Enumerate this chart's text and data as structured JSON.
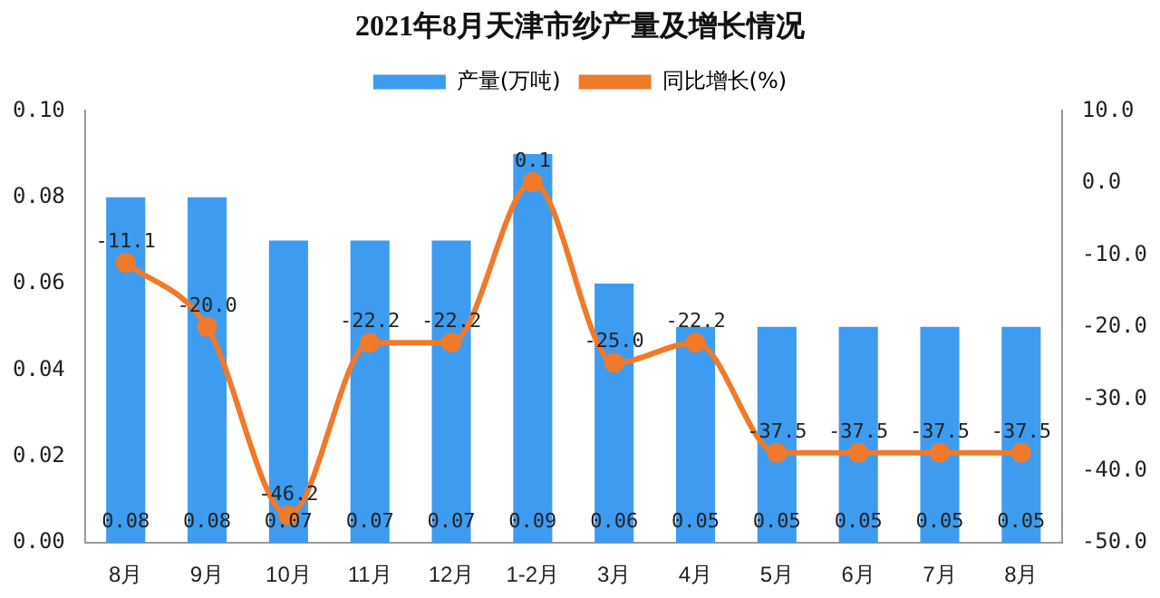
{
  "chart_data": {
    "type": "bar",
    "title": "2021年8月天津市纱产量及增长情况",
    "categories": [
      "8月",
      "9月",
      "10月",
      "11月",
      "12月",
      "1-2月",
      "3月",
      "4月",
      "5月",
      "6月",
      "7月",
      "8月"
    ],
    "series": [
      {
        "name": "产量(万吨)",
        "color": "#3d9cf0",
        "values": [
          0.08,
          0.08,
          0.07,
          0.07,
          0.07,
          0.09,
          0.06,
          0.05,
          0.05,
          0.05,
          0.05,
          0.05
        ],
        "value_labels": [
          "0.08",
          "0.08",
          "0.07",
          "0.07",
          "0.07",
          "0.09",
          "0.06",
          "0.05",
          "0.05",
          "0.05",
          "0.05",
          "0.05"
        ]
      },
      {
        "name": "同比增长(%)",
        "type": "line",
        "axis": "y2",
        "color": "#f07a2a",
        "values": [
          -11.1,
          -20.0,
          -46.2,
          -22.2,
          -22.2,
          0.1,
          -25.0,
          -22.2,
          -37.5,
          -37.5,
          -37.5,
          -37.5
        ],
        "value_labels": [
          "-11.1",
          "-20.0",
          "-46.2",
          "-22.2",
          "-22.2",
          "0.1",
          "-25.0",
          "-22.2",
          "-37.5",
          "-37.5",
          "-37.5",
          "-37.5"
        ]
      }
    ],
    "ylim": [
      0,
      0.1
    ],
    "yticks": [
      {
        "value": 0,
        "label": "0.00"
      },
      {
        "value": 0.02,
        "label": "0.02"
      },
      {
        "value": 0.04,
        "label": "0.04"
      },
      {
        "value": 0.06,
        "label": "0.06"
      },
      {
        "value": 0.08,
        "label": "0.08"
      },
      {
        "value": 0.1,
        "label": "0.10"
      }
    ],
    "y2lim": [
      -50,
      10
    ],
    "y2ticks": [
      {
        "value": -50,
        "label": "-50.0"
      },
      {
        "value": -40,
        "label": "-40.0"
      },
      {
        "value": -30,
        "label": "-30.0"
      },
      {
        "value": -20,
        "label": "-20.0"
      },
      {
        "value": -10,
        "label": "-10.0"
      },
      {
        "value": 0,
        "label": "0.0"
      },
      {
        "value": 10,
        "label": "10.0"
      }
    ],
    "legend": "top",
    "marker": "circle",
    "grid": false
  }
}
